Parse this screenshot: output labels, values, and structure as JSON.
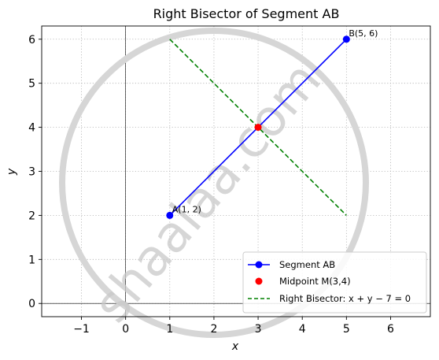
{
  "chart_data": {
    "type": "line",
    "title": "Right Bisector of Segment AB",
    "xlabel": "x",
    "ylabel": "y",
    "xlim": [
      -1.9,
      6.9
    ],
    "ylim": [
      -0.3,
      6.3
    ],
    "xticks": [
      -1,
      0,
      1,
      2,
      3,
      4,
      5,
      6
    ],
    "yticks": [
      0,
      1,
      2,
      3,
      4,
      5,
      6
    ],
    "grid": true,
    "legend_position": "lower-right",
    "series": [
      {
        "name": "Segment AB",
        "style": "solid-with-markers",
        "color": "#0000ff",
        "x": [
          1,
          5
        ],
        "y": [
          2,
          6
        ]
      },
      {
        "name": "Midpoint M(3,4)",
        "style": "point",
        "color": "#ff0000",
        "x": [
          3
        ],
        "y": [
          4
        ]
      },
      {
        "name": "Right Bisector: x + y − 7 = 0",
        "style": "dashed",
        "color": "#008000",
        "x": [
          1,
          5
        ],
        "y": [
          6,
          2
        ]
      }
    ],
    "annotations": [
      {
        "text": "A(1, 2)",
        "x": 1,
        "y": 2
      },
      {
        "text": "B(5, 6)",
        "x": 5,
        "y": 6
      }
    ]
  },
  "watermark": {
    "text": "shaalaa.com"
  }
}
